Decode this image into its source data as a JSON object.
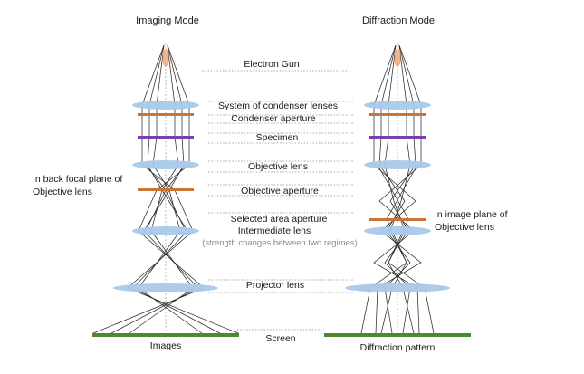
{
  "titles": {
    "imaging": "Imaging Mode",
    "diffraction": "Diffraction Mode"
  },
  "components": {
    "gun": "Electron Gun",
    "condenser_lenses": "System of condenser lenses",
    "condenser_aperture": "Condenser aperture",
    "specimen": "Specimen",
    "objective_lens": "Objective lens",
    "objective_aperture": "Objective aperture",
    "selected_area_aperture": "Selected area aperture",
    "intermediate_lens": "Intermediate lens",
    "intermediate_note": "(strength changes between two regimes)",
    "projector_lens": "Projector lens",
    "screen": "Screen"
  },
  "side_notes": {
    "back_focal_line1": "In back focal plane of",
    "back_focal_line2": "Objective lens",
    "image_plane_line1": "In image plane of",
    "image_plane_line2": "Objective lens"
  },
  "bottom_labels": {
    "images": "Images",
    "diffraction_pattern": "Diffraction pattern"
  },
  "colors": {
    "lens": "#a9c8ea",
    "aperture": "#c8743a",
    "specimen": "#7b3fb0",
    "screen": "#4d8a2e",
    "gun": "#f2b48f"
  }
}
